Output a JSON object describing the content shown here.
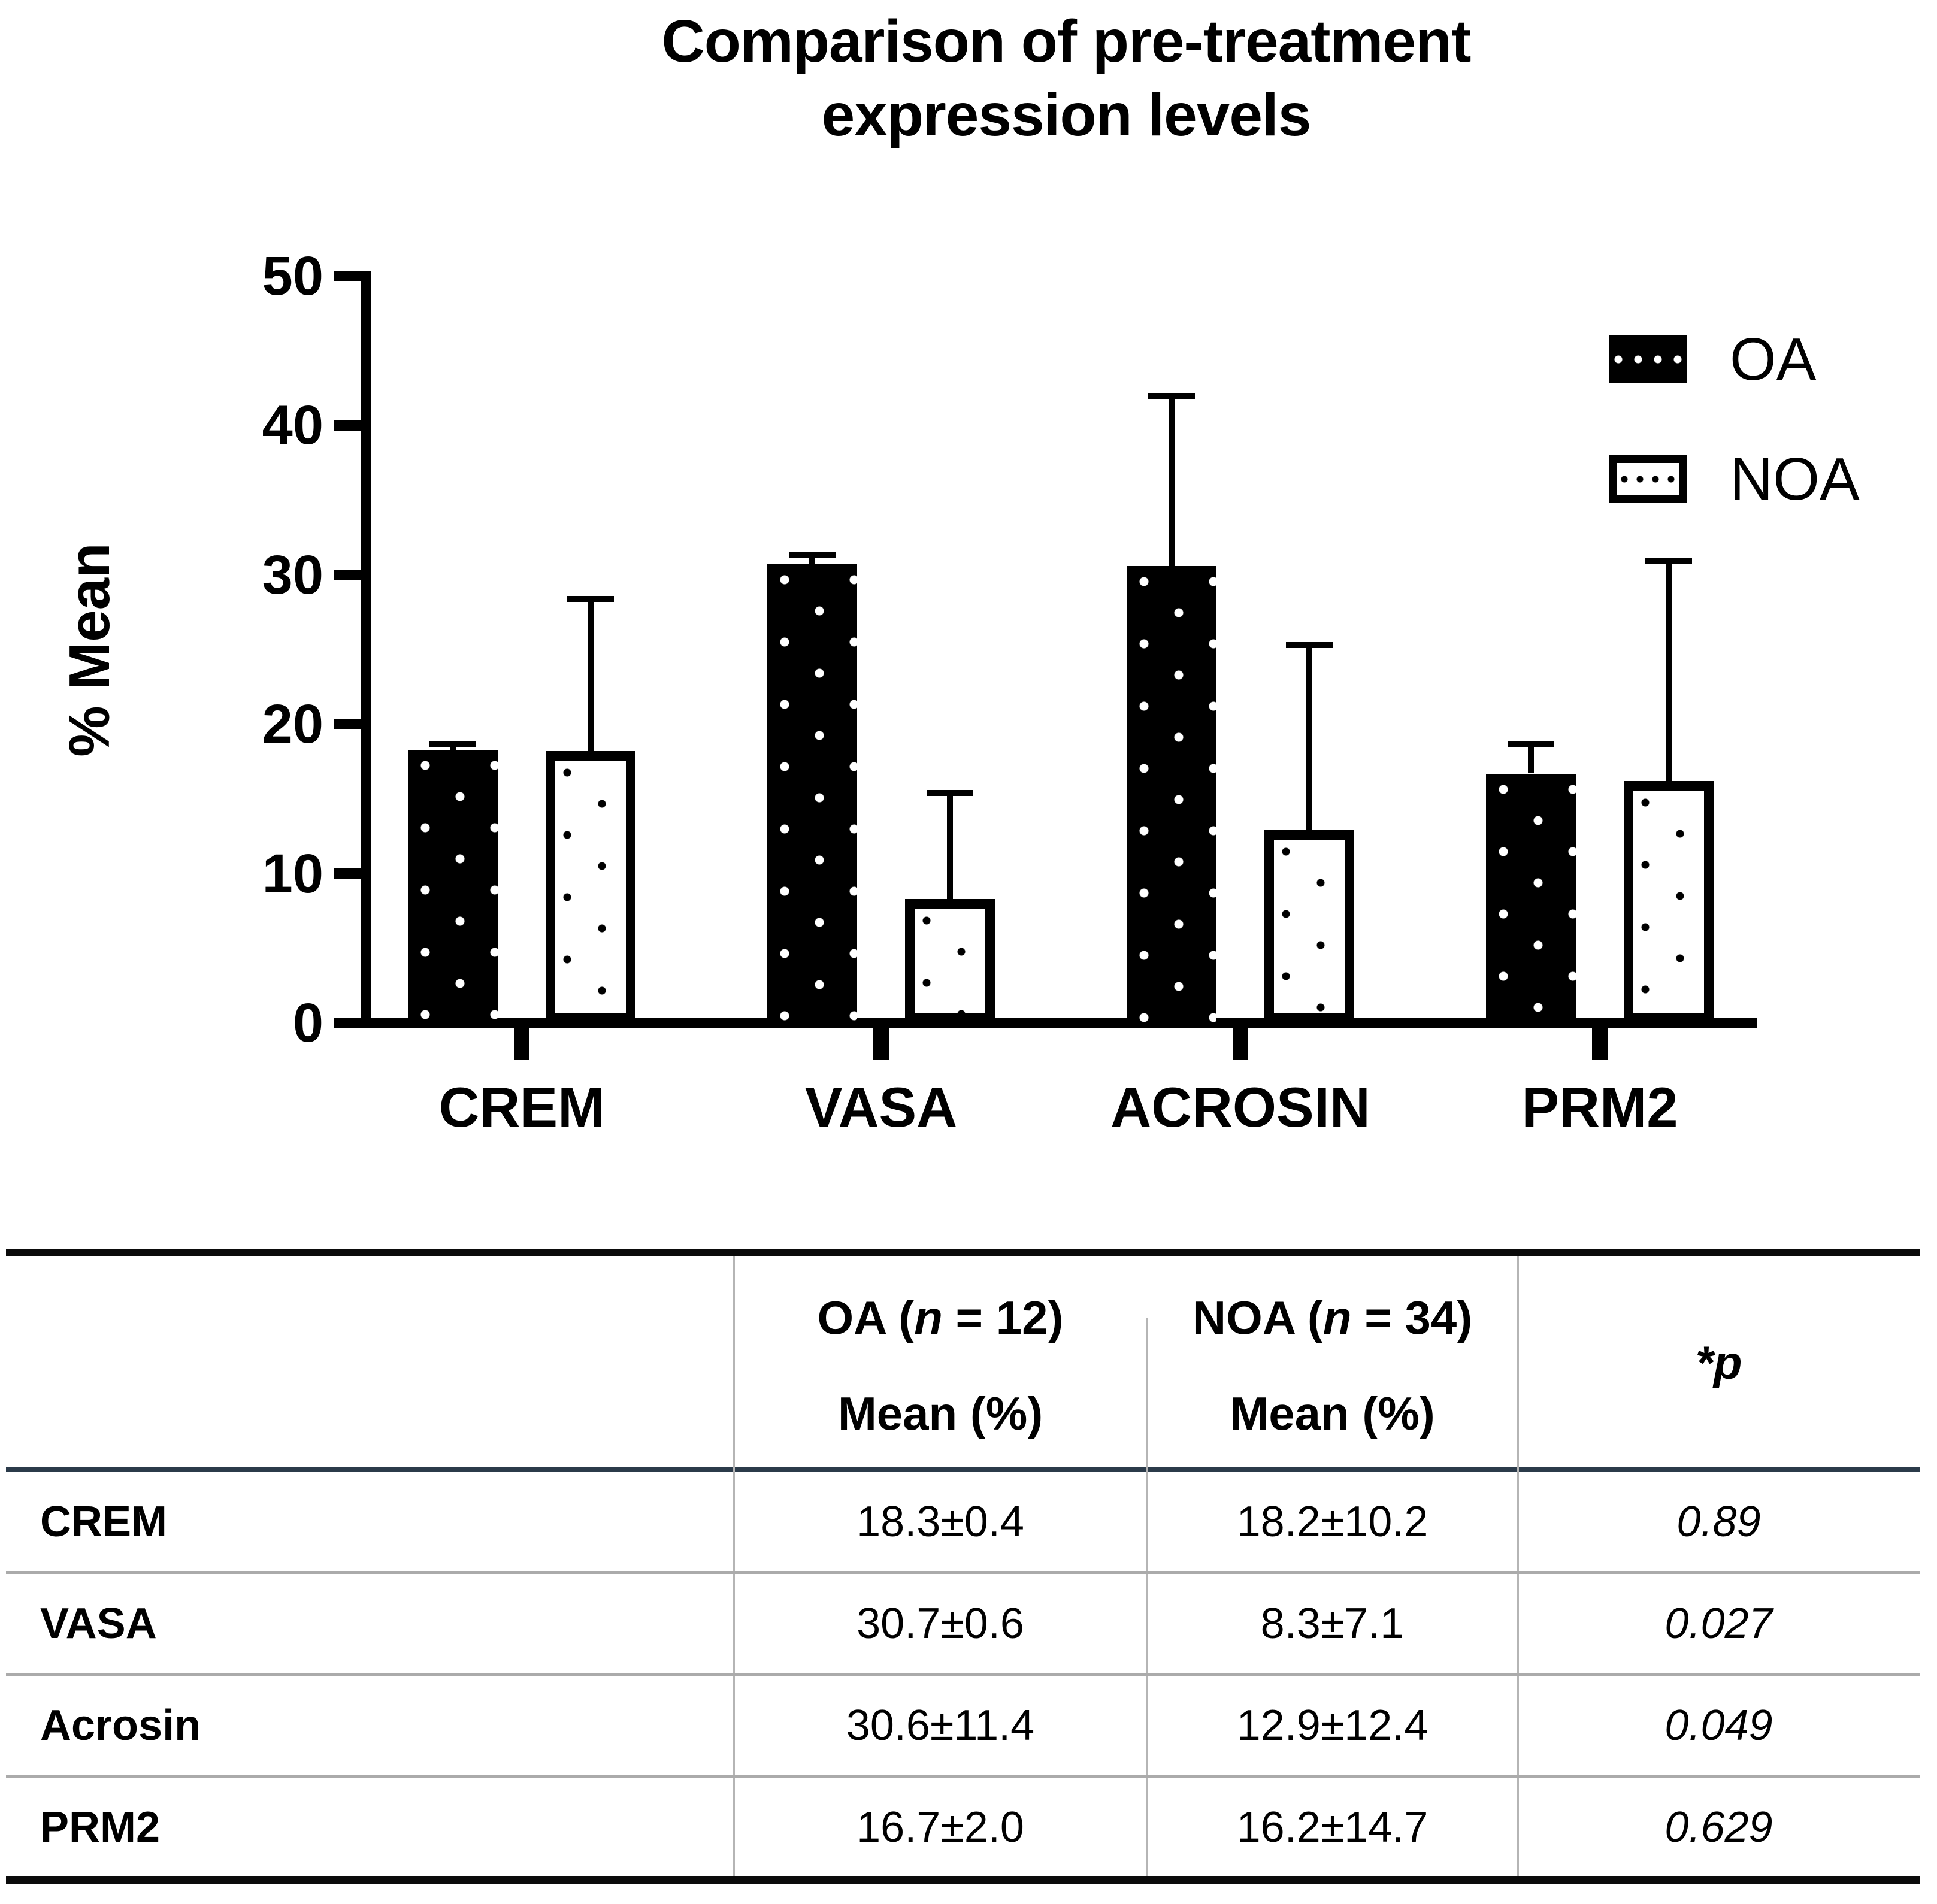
{
  "chart": {
    "title_line1": "Comparison of pre-treatment",
    "title_line2": "expression levels",
    "y_axis": {
      "label": "% Mean",
      "ticks": [
        "50",
        "40",
        "30",
        "20",
        "10",
        "0"
      ]
    },
    "legend": [
      {
        "label": "OA",
        "style": "oa"
      },
      {
        "label": "NOA",
        "style": "noa"
      }
    ]
  },
  "chart_data": {
    "type": "bar",
    "title": "Comparison of pre-treatment expression levels",
    "categories": [
      "CREM",
      "VASA",
      "ACROSIN",
      "PRM2"
    ],
    "series": [
      {
        "name": "OA",
        "values": [
          18.3,
          30.7,
          30.6,
          16.7
        ],
        "sd": [
          0.4,
          0.6,
          11.4,
          2.0
        ]
      },
      {
        "name": "NOA",
        "values": [
          18.2,
          8.3,
          12.9,
          16.2
        ],
        "sd": [
          10.2,
          7.1,
          12.4,
          14.7
        ]
      }
    ],
    "xlabel": "",
    "ylabel": "% Mean",
    "ylim": [
      0,
      50
    ],
    "ytick_step": 10,
    "grid": false,
    "legend_position": "top-right",
    "error_bars": "sd, upper only",
    "bar_fill": {
      "OA": "black with white dots",
      "NOA": "white with black dots, thick black outline"
    }
  },
  "table": {
    "headers": {
      "oa": {
        "pre": "OA (",
        "n": "n",
        "post": " = 12)",
        "sub": "Mean (%)"
      },
      "noa": {
        "pre": "NOA (",
        "n": "n",
        "post": " = 34)",
        "sub": "Mean (%)"
      },
      "p": "*p"
    },
    "rows": [
      {
        "label": "CREM",
        "oa": "18.3±0.4",
        "noa": "18.2±10.2",
        "p": "0.89"
      },
      {
        "label": "VASA",
        "oa": "30.7±0.6",
        "noa": "8.3±7.1",
        "p": "0.027"
      },
      {
        "label": "Acrosin",
        "oa": "30.6±11.4",
        "noa": "12.9±12.4",
        "p": "0.049"
      },
      {
        "label": "PRM2",
        "oa": "16.7±2.0",
        "noa": "16.2±14.7",
        "p": "0.629"
      }
    ]
  }
}
